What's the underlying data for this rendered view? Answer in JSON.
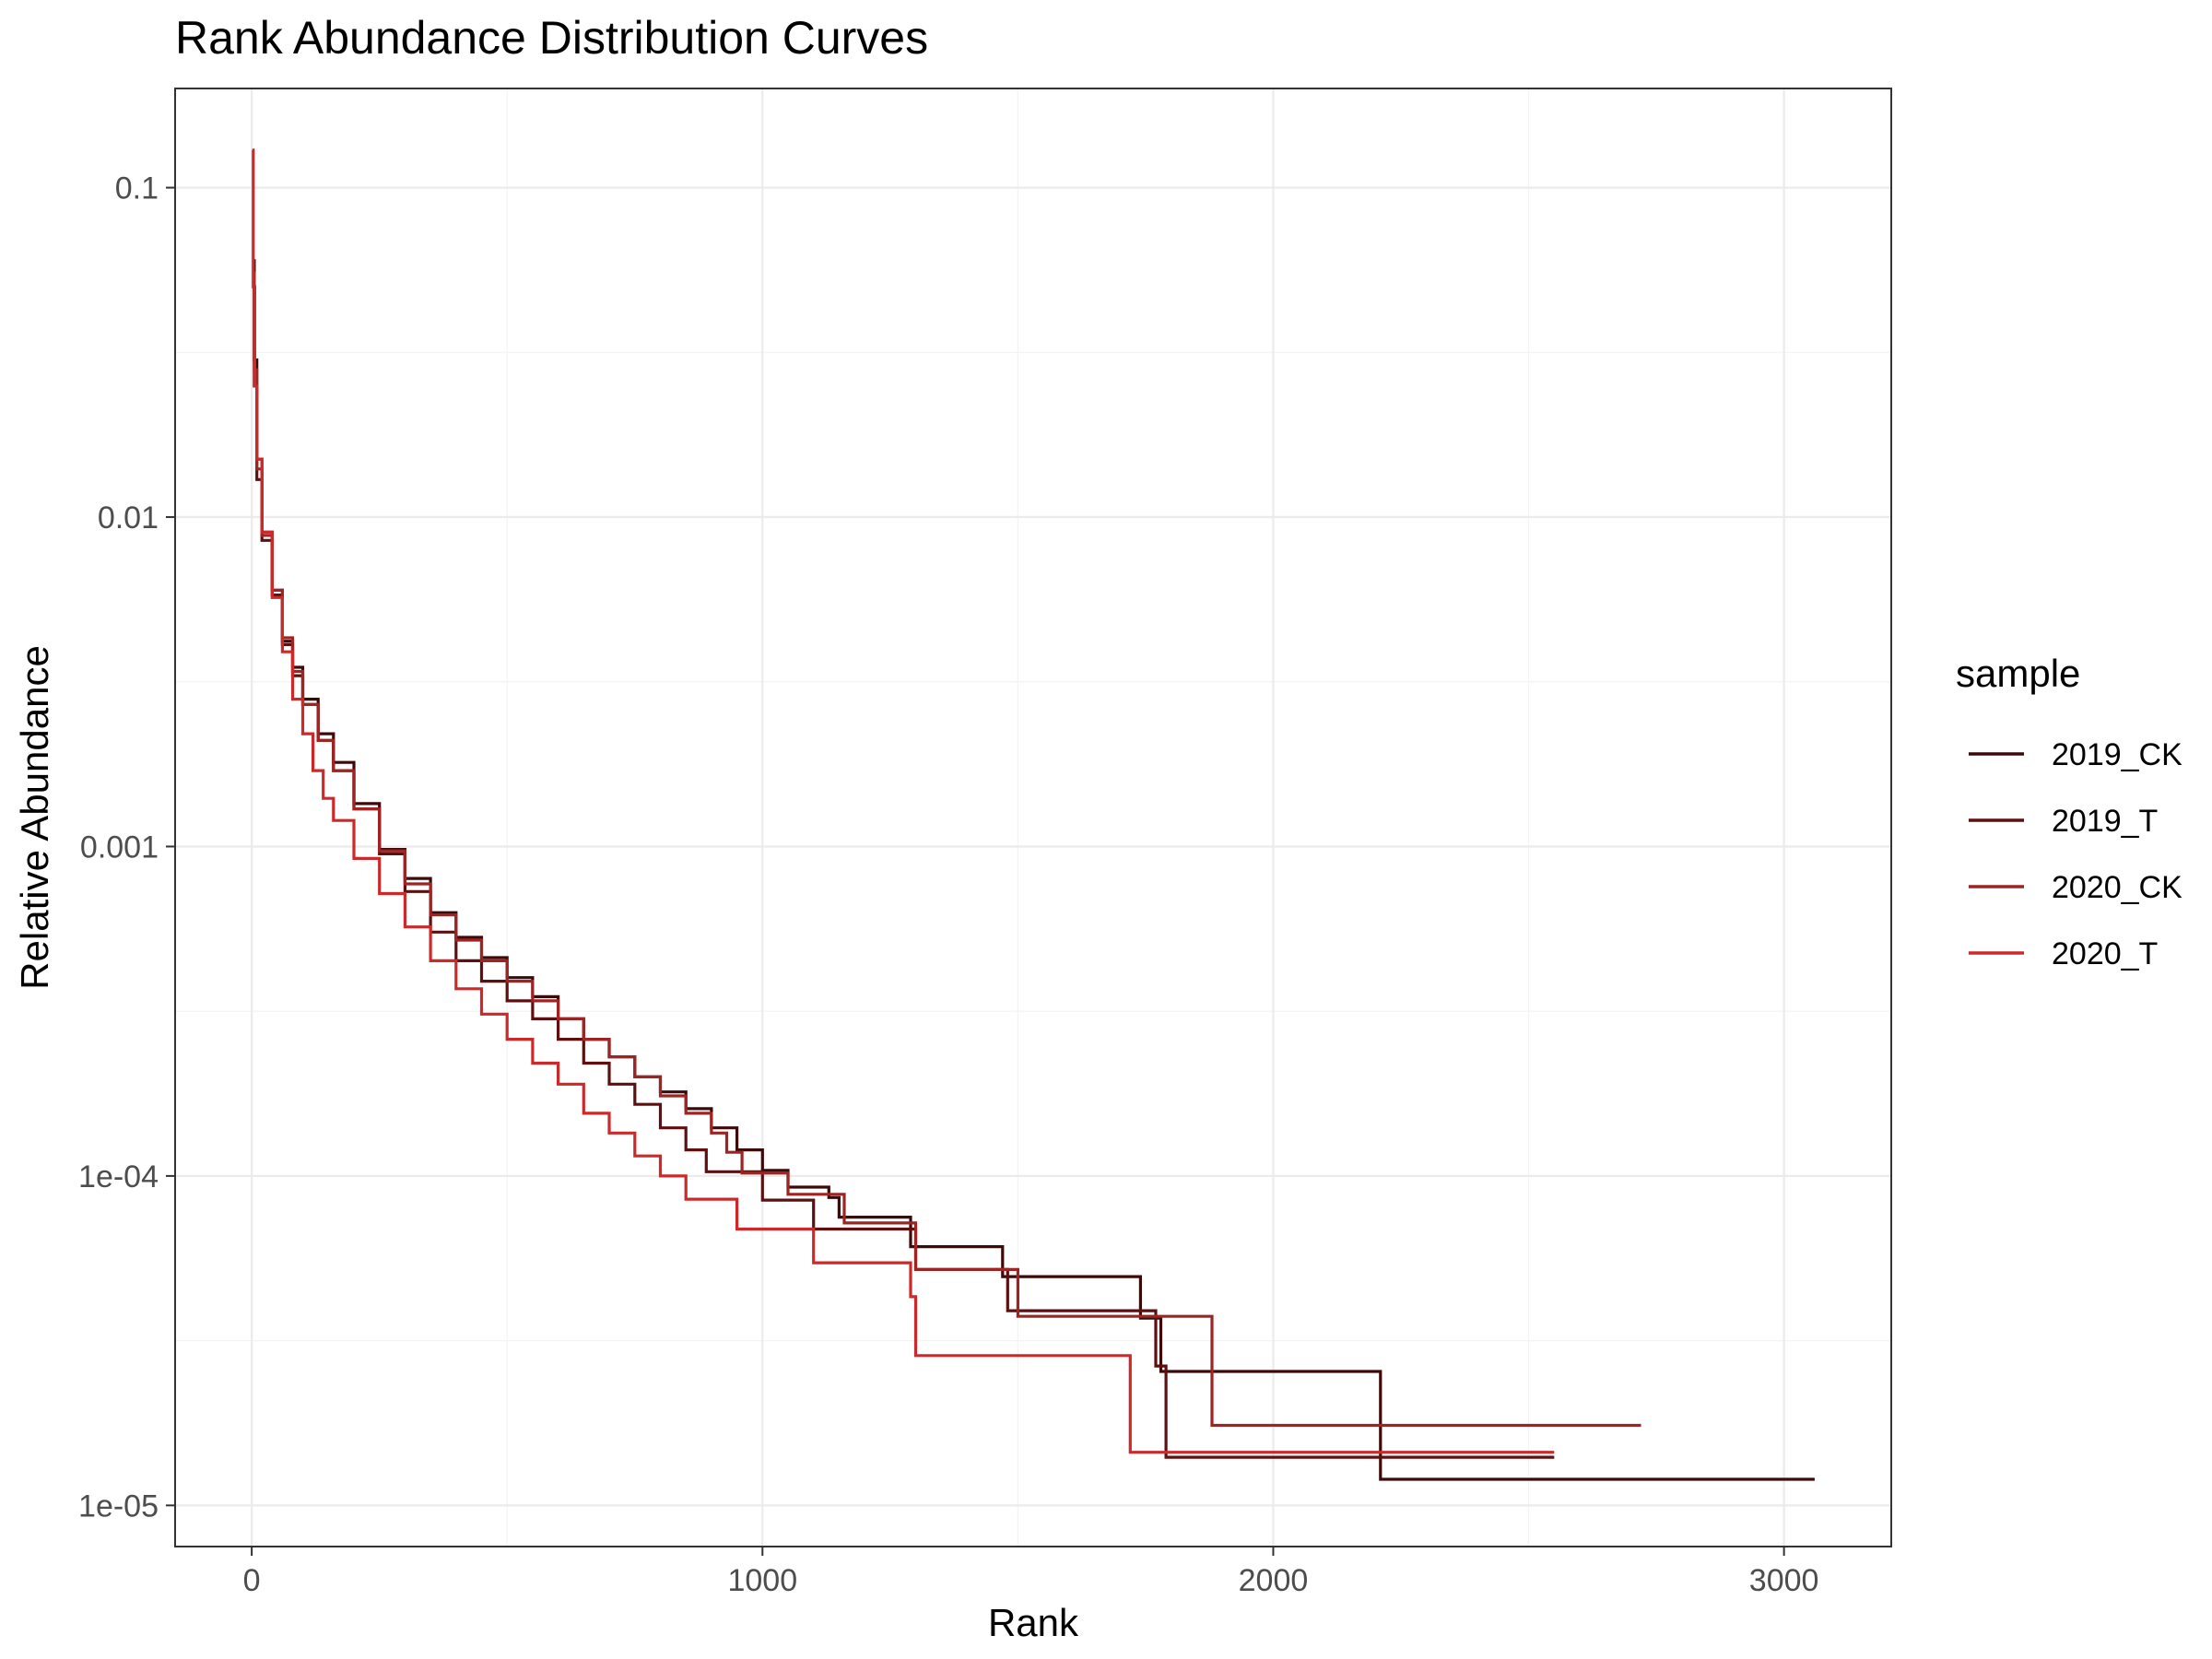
{
  "chart_data": {
    "type": "line",
    "title": "Rank Abundance Distribution Curves",
    "xlabel": "Rank",
    "ylabel": "Relative Abundance",
    "xlim": [
      -150,
      3210
    ],
    "ylim": [
      7.5e-06,
      0.2
    ],
    "y_scale": "log10",
    "grid": true,
    "legend": {
      "title": "sample",
      "position": "right"
    },
    "x_ticks": [
      {
        "value": 0,
        "label": "0"
      },
      {
        "value": 1000,
        "label": "1000"
      },
      {
        "value": 2000,
        "label": "2000"
      },
      {
        "value": 3000,
        "label": "3000"
      }
    ],
    "y_ticks": [
      {
        "value": 0.1,
        "label": "0.1"
      },
      {
        "value": 0.01,
        "label": "0.01"
      },
      {
        "value": 0.001,
        "label": "0.001"
      },
      {
        "value": 0.0001,
        "label": "1e-04"
      },
      {
        "value": 1e-05,
        "label": "1e-05"
      }
    ],
    "series": [
      {
        "name": "2019_CK",
        "color": "#3d0a0a",
        "step": true,
        "points": [
          [
            1,
            0.06
          ],
          [
            5,
            0.03
          ],
          [
            10,
            0.015
          ],
          [
            20,
            0.009
          ],
          [
            40,
            0.006
          ],
          [
            60,
            0.0042
          ],
          [
            80,
            0.0035
          ],
          [
            100,
            0.0028
          ],
          [
            130,
            0.0022
          ],
          [
            160,
            0.0018
          ],
          [
            200,
            0.00135
          ],
          [
            250,
            0.00098
          ],
          [
            300,
            0.0008
          ],
          [
            350,
            0.00063
          ],
          [
            400,
            0.00053
          ],
          [
            450,
            0.00046
          ],
          [
            500,
            0.0004
          ],
          [
            550,
            0.00035
          ],
          [
            600,
            0.0003
          ],
          [
            650,
            0.00026
          ],
          [
            700,
            0.00023
          ],
          [
            750,
            0.0002
          ],
          [
            800,
            0.00018
          ],
          [
            850,
            0.00016
          ],
          [
            900,
            0.00014
          ],
          [
            950,
            0.00012
          ],
          [
            1000,
            0.000104
          ],
          [
            1050,
            9.25e-05
          ],
          [
            1130,
            8.6e-05
          ],
          [
            1150,
            7.5e-05
          ],
          [
            1290,
            6.1e-05
          ],
          [
            1470,
            4.95e-05
          ],
          [
            1740,
            3.7e-05
          ],
          [
            1780,
            2.55e-05
          ],
          [
            2210,
            2.4e-05
          ],
          [
            2210,
            1.2e-05
          ],
          [
            3060,
            1.2e-05
          ]
        ]
      },
      {
        "name": "2019_T",
        "color": "#5e1010",
        "step": true,
        "points": [
          [
            1,
            0.05
          ],
          [
            5,
            0.025
          ],
          [
            10,
            0.013
          ],
          [
            20,
            0.0085
          ],
          [
            40,
            0.0058
          ],
          [
            60,
            0.0041
          ],
          [
            80,
            0.0033
          ],
          [
            100,
            0.0027
          ],
          [
            130,
            0.0021
          ],
          [
            160,
            0.0017
          ],
          [
            200,
            0.0013
          ],
          [
            250,
            0.00095
          ],
          [
            300,
            0.00073
          ],
          [
            350,
            0.00055
          ],
          [
            400,
            0.00045
          ],
          [
            450,
            0.00039
          ],
          [
            500,
            0.00034
          ],
          [
            550,
            0.0003
          ],
          [
            600,
            0.00026
          ],
          [
            650,
            0.00022
          ],
          [
            700,
            0.00019
          ],
          [
            750,
            0.000165
          ],
          [
            800,
            0.00014
          ],
          [
            850,
            0.00012
          ],
          [
            890,
            0.000103
          ],
          [
            1000,
            8.45e-05
          ],
          [
            1100,
            6.9e-05
          ],
          [
            1300,
            5.2e-05
          ],
          [
            1480,
            3.9e-05
          ],
          [
            1770,
            2.65e-05
          ],
          [
            1790,
            1.4e-05
          ],
          [
            2550,
            1.4e-05
          ]
        ]
      },
      {
        "name": "2020_CK",
        "color": "#9e2424",
        "step": true,
        "points": [
          [
            1,
            0.055
          ],
          [
            5,
            0.028
          ],
          [
            10,
            0.014
          ],
          [
            20,
            0.0088
          ],
          [
            40,
            0.006
          ],
          [
            60,
            0.0043
          ],
          [
            80,
            0.0034
          ],
          [
            100,
            0.0027
          ],
          [
            130,
            0.0021
          ],
          [
            160,
            0.0017
          ],
          [
            200,
            0.0013
          ],
          [
            250,
            0.00097
          ],
          [
            300,
            0.00077
          ],
          [
            350,
            0.00062
          ],
          [
            400,
            0.00052
          ],
          [
            450,
            0.00045
          ],
          [
            500,
            0.00039
          ],
          [
            550,
            0.00034
          ],
          [
            600,
            0.0003
          ],
          [
            650,
            0.00026
          ],
          [
            700,
            0.00023
          ],
          [
            750,
            0.0002
          ],
          [
            800,
            0.000175
          ],
          [
            850,
            0.000155
          ],
          [
            900,
            0.000135
          ],
          [
            930,
            0.000118
          ],
          [
            960,
            0.000102
          ],
          [
            1050,
            8.8e-05
          ],
          [
            1160,
            7.2e-05
          ],
          [
            1300,
            5.2e-05
          ],
          [
            1500,
            3.75e-05
          ],
          [
            1880,
            2.75e-05
          ],
          [
            1880,
            1.75e-05
          ],
          [
            2720,
            1.75e-05
          ]
        ]
      },
      {
        "name": "2020_T",
        "color": "#cc2a2a",
        "step": true,
        "points": [
          [
            1,
            0.13
          ],
          [
            3,
            0.05
          ],
          [
            6,
            0.025
          ],
          [
            10,
            0.015
          ],
          [
            20,
            0.009
          ],
          [
            40,
            0.0057
          ],
          [
            60,
            0.0039
          ],
          [
            80,
            0.0028
          ],
          [
            100,
            0.0022
          ],
          [
            120,
            0.0017
          ],
          [
            140,
            0.0014
          ],
          [
            160,
            0.0012
          ],
          [
            200,
            0.00092
          ],
          [
            250,
            0.00072
          ],
          [
            300,
            0.00057
          ],
          [
            350,
            0.00045
          ],
          [
            400,
            0.00037
          ],
          [
            450,
            0.00031
          ],
          [
            500,
            0.00026
          ],
          [
            550,
            0.00022
          ],
          [
            600,
            0.00019
          ],
          [
            650,
            0.000155
          ],
          [
            700,
            0.000135
          ],
          [
            750,
            0.000115
          ],
          [
            800,
            0.0001
          ],
          [
            850,
            8.5e-05
          ],
          [
            950,
            6.9e-05
          ],
          [
            1100,
            5.45e-05
          ],
          [
            1290,
            4.3e-05
          ],
          [
            1300,
            2.85e-05
          ],
          [
            1720,
            2.85e-05
          ],
          [
            1720,
            1.45e-05
          ],
          [
            2550,
            1.45e-05
          ]
        ]
      }
    ]
  }
}
